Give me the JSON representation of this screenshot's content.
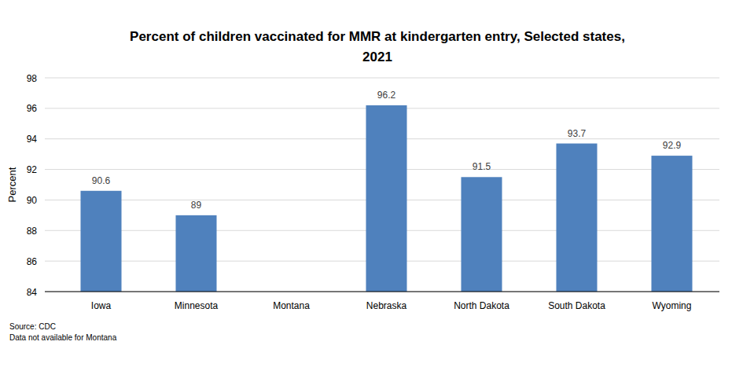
{
  "chart_data": {
    "type": "bar",
    "title": "Percent of children vaccinated for MMR at kindergarten entry, Selected states, 2021",
    "y_label": "Percent",
    "categories": [
      "Iowa",
      "Minnesota",
      "Montana",
      "Nebraska",
      "North Dakota",
      "South Dakota",
      "Wyoming"
    ],
    "values": [
      90.6,
      89,
      null,
      96.2,
      91.5,
      93.7,
      92.9
    ],
    "color": "#4f81bd",
    "ylim": [
      84,
      98
    ],
    "yticks": [
      84,
      86,
      88,
      90,
      92,
      94,
      96,
      98
    ],
    "grid": true,
    "data_labels": true,
    "source": "Source: CDC",
    "note": "Data not available for Montana"
  }
}
